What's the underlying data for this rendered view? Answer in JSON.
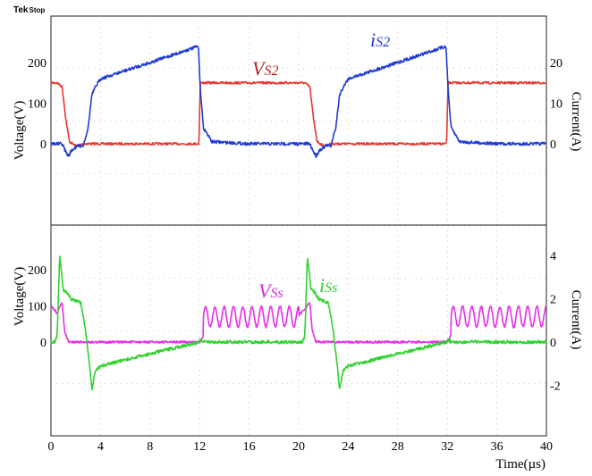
{
  "header": {
    "brand": "Tek",
    "status": "Stop"
  },
  "colors": {
    "vs2": "#e8362e",
    "is2": "#1f3bd6",
    "vss": "#e62ee6",
    "iss": "#2ed12e",
    "grid": "#9a9a9a",
    "vs2_label": "#b3261e",
    "vss_label": "#d62ad6",
    "is2_label": "#1f3bd6",
    "iss_label": "#2ed12e"
  },
  "chart_data": [
    {
      "type": "line",
      "panel": "top",
      "ylabel": "Voltage(V)",
      "y2label": "Current(A)",
      "xlim": [
        0,
        40
      ],
      "y_ticks": [
        0,
        100,
        200
      ],
      "y_tick_labels": [
        "0",
        "100",
        "200"
      ],
      "y2_ticks": [
        0,
        10,
        20
      ],
      "y2_tick_labels": [
        "0",
        "10",
        "20"
      ],
      "series": [
        {
          "name": "VS2",
          "name_main": "V",
          "name_sub": "S2",
          "axis": "left",
          "x": [
            0,
            0.5,
            0.9,
            1.2,
            1.5,
            2.0,
            2.7,
            3.0,
            5.0,
            8.0,
            11.95,
            12.05,
            12.3,
            16.0,
            20.0,
            20.5,
            20.9,
            21.2,
            21.5,
            22.0,
            22.7,
            23.0,
            26.0,
            31.95,
            32.05,
            32.3,
            36.0,
            40.0
          ],
          "y": [
            150,
            150,
            140,
            60,
            5,
            -5,
            0,
            0,
            0,
            0,
            0,
            150,
            150,
            150,
            150,
            150,
            140,
            60,
            5,
            -5,
            0,
            0,
            0,
            0,
            150,
            150,
            150,
            150
          ]
        },
        {
          "name": "iS2",
          "name_main": "i",
          "name_sub": "S2",
          "axis": "right",
          "x": [
            0,
            0.9,
            1.2,
            1.4,
            1.7,
            2.2,
            2.6,
            3.0,
            3.3,
            3.6,
            4.0,
            8.0,
            11.9,
            12.05,
            12.3,
            13.0,
            16.0,
            20.0,
            20.9,
            21.2,
            21.4,
            21.7,
            22.2,
            22.6,
            23.0,
            23.3,
            23.6,
            24.0,
            28.0,
            31.9,
            32.05,
            32.3,
            33.0,
            36.0,
            40.0
          ],
          "y": [
            0,
            0,
            -2,
            -3,
            -1.5,
            -0.5,
            -0.5,
            4,
            12,
            14,
            16,
            20,
            24,
            14,
            4,
            0.5,
            0,
            0,
            0,
            -2,
            -3,
            -1.5,
            -0.5,
            -0.5,
            4,
            12,
            14,
            16,
            20,
            24,
            14,
            4,
            0.5,
            0,
            0
          ]
        }
      ]
    },
    {
      "type": "line",
      "panel": "bottom",
      "ylabel": "Voltage(V)",
      "y2label": "Current(A)",
      "xlabel": "Time(µs)",
      "xlim": [
        0,
        40
      ],
      "x_ticks": [
        0,
        4,
        8,
        12,
        16,
        20,
        24,
        28,
        32,
        36,
        40
      ],
      "x_tick_labels": [
        "0",
        "4",
        "8",
        "12",
        "16",
        "20",
        "24",
        "28",
        "32",
        "36",
        "40"
      ],
      "y_ticks": [
        0,
        100,
        200
      ],
      "y_tick_labels": [
        "0",
        "100",
        "200"
      ],
      "y2_ticks": [
        -2,
        0,
        2,
        4
      ],
      "y2_tick_labels": [
        "-2",
        "0",
        "2",
        "4"
      ],
      "series": [
        {
          "name": "VSs",
          "name_main": "V",
          "name_sub": "Ss",
          "axis": "left",
          "x": [
            0,
            0.5,
            0.9,
            1.1,
            1.4,
            12.0,
            12.05,
            13.0,
            20.0,
            20.5,
            20.9,
            21.1,
            21.4,
            32.0,
            32.05,
            33.0,
            40.0
          ],
          "y": [
            100,
            80,
            110,
            30,
            0,
            0,
            0,
            70,
            75,
            90,
            110,
            30,
            0,
            0,
            0,
            70,
            60
          ],
          "oscillation": {
            "from": 12.3,
            "to": 20.0,
            "period": 0.75,
            "amplitude": 28,
            "mean": 70
          },
          "oscillation2": {
            "from": 32.3,
            "to": 40.0,
            "period": 0.75,
            "amplitude": 28,
            "mean": 70
          }
        },
        {
          "name": "iSs",
          "name_main": "i",
          "name_sub": "Ss",
          "axis": "right",
          "x": [
            0,
            0.3,
            0.5,
            0.7,
            1.0,
            1.3,
            1.6,
            2.4,
            2.8,
            3.1,
            3.3,
            3.6,
            4.0,
            11.95,
            12.05,
            12.3,
            16.0,
            20.0,
            20.3,
            20.5,
            20.7,
            21.0,
            21.3,
            21.6,
            22.4,
            22.8,
            23.1,
            23.3,
            23.6,
            24.0,
            31.95,
            32.05,
            32.3,
            36.0,
            40.0
          ],
          "y": [
            0,
            0,
            0.3,
            4.0,
            2.4,
            2.3,
            2.0,
            1.8,
            0.5,
            -1.0,
            -2.2,
            -1.3,
            -1.1,
            0,
            0.1,
            0,
            0,
            0,
            0,
            0.3,
            4.0,
            2.4,
            2.3,
            2.0,
            1.8,
            0.5,
            -1.0,
            -2.2,
            -1.3,
            -1.1,
            0,
            0.1,
            0,
            0,
            0
          ]
        }
      ]
    }
  ]
}
